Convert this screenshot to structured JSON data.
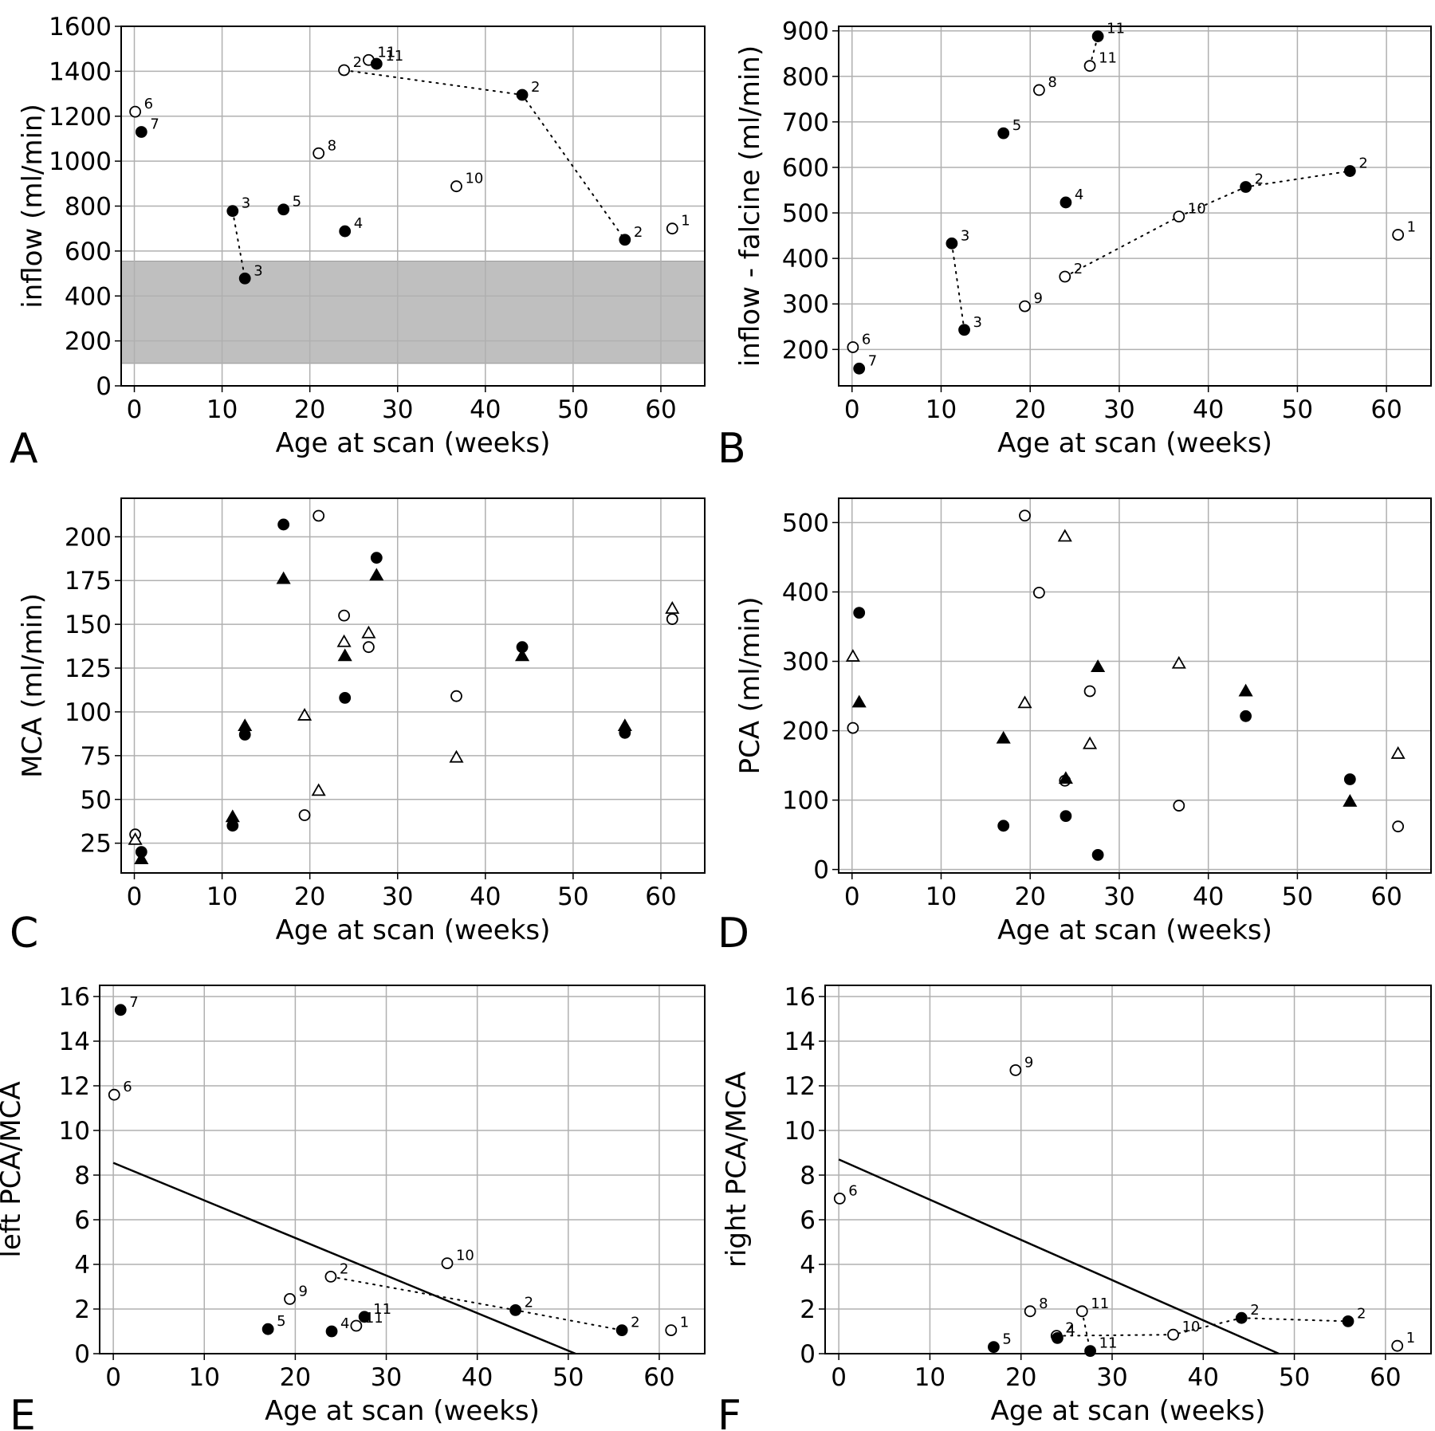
{
  "chart_data": [
    {
      "panel": "A",
      "type": "scatter",
      "xlabel": "Age at scan (weeks)",
      "ylabel": "inflow (ml/min)",
      "xlim": [
        -1.5,
        65
      ],
      "ylim": [
        0,
        1600
      ],
      "xticks": [
        0,
        10,
        20,
        30,
        40,
        50,
        60
      ],
      "yticks": [
        0,
        200,
        400,
        600,
        800,
        1000,
        1200,
        1400,
        1600
      ],
      "grid": true,
      "band": {
        "y0": 100,
        "y1": 555,
        "color": "#bfbfbf"
      },
      "points": [
        {
          "x": 0.1,
          "y": 1220,
          "filled": false,
          "label": "6"
        },
        {
          "x": 0.8,
          "y": 1130,
          "filled": true,
          "label": "7"
        },
        {
          "x": 11.2,
          "y": 778,
          "filled": true,
          "label": "3"
        },
        {
          "x": 12.6,
          "y": 478,
          "filled": true,
          "label": "3"
        },
        {
          "x": 17.0,
          "y": 785,
          "filled": true,
          "label": "5"
        },
        {
          "x": 21.0,
          "y": 1035,
          "filled": false,
          "label": "8"
        },
        {
          "x": 23.9,
          "y": 1405,
          "filled": false,
          "label": "2"
        },
        {
          "x": 24.0,
          "y": 688,
          "filled": true,
          "label": "4"
        },
        {
          "x": 26.7,
          "y": 1450,
          "filled": false,
          "label": "11"
        },
        {
          "x": 27.6,
          "y": 1433,
          "filled": true,
          "label": "11"
        },
        {
          "x": 36.7,
          "y": 888,
          "filled": false,
          "label": "10"
        },
        {
          "x": 44.2,
          "y": 1295,
          "filled": true,
          "label": "2"
        },
        {
          "x": 55.9,
          "y": 650,
          "filled": true,
          "label": "2"
        },
        {
          "x": 61.3,
          "y": 700,
          "filled": false,
          "label": "1"
        }
      ],
      "connectors": [
        [
          [
            11.2,
            778
          ],
          [
            12.6,
            478
          ]
        ],
        [
          [
            23.9,
            1405
          ],
          [
            44.2,
            1295
          ],
          [
            55.9,
            650
          ]
        ],
        [
          [
            26.7,
            1450
          ],
          [
            27.6,
            1433
          ]
        ]
      ]
    },
    {
      "panel": "B",
      "type": "scatter",
      "xlabel": "Age at scan (weeks)",
      "ylabel": "inflow - falcine (ml/min)",
      "xlim": [
        -1.5,
        65
      ],
      "ylim": [
        120,
        910
      ],
      "xticks": [
        0,
        10,
        20,
        30,
        40,
        50,
        60
      ],
      "yticks": [
        200,
        300,
        400,
        500,
        600,
        700,
        800,
        900
      ],
      "grid": true,
      "points": [
        {
          "x": 0.1,
          "y": 205,
          "filled": false,
          "label": "6"
        },
        {
          "x": 0.8,
          "y": 158,
          "filled": true,
          "label": "7"
        },
        {
          "x": 11.2,
          "y": 433,
          "filled": true,
          "label": "3"
        },
        {
          "x": 12.6,
          "y": 243,
          "filled": true,
          "label": "3"
        },
        {
          "x": 17.0,
          "y": 675,
          "filled": true,
          "label": "5"
        },
        {
          "x": 19.4,
          "y": 295,
          "filled": false,
          "label": "9"
        },
        {
          "x": 21.0,
          "y": 770,
          "filled": false,
          "label": "8"
        },
        {
          "x": 23.9,
          "y": 360,
          "filled": false,
          "label": "2"
        },
        {
          "x": 24.0,
          "y": 523,
          "filled": true,
          "label": "4"
        },
        {
          "x": 26.7,
          "y": 823,
          "filled": false,
          "label": "11"
        },
        {
          "x": 27.6,
          "y": 888,
          "filled": true,
          "label": "11"
        },
        {
          "x": 36.7,
          "y": 492,
          "filled": false,
          "label": "10"
        },
        {
          "x": 44.2,
          "y": 557,
          "filled": true,
          "label": "2"
        },
        {
          "x": 55.9,
          "y": 592,
          "filled": true,
          "label": "2"
        },
        {
          "x": 61.3,
          "y": 452,
          "filled": false,
          "label": "1"
        }
      ],
      "connectors": [
        [
          [
            11.2,
            433
          ],
          [
            12.6,
            243
          ]
        ],
        [
          [
            23.9,
            360
          ],
          [
            36.7,
            492
          ],
          [
            44.2,
            557
          ],
          [
            55.9,
            592
          ]
        ],
        [
          [
            26.7,
            823
          ],
          [
            27.6,
            888
          ]
        ]
      ]
    },
    {
      "panel": "C",
      "type": "scatter",
      "xlabel": "Age at scan (weeks)",
      "ylabel": "MCA (ml/min)",
      "xlim": [
        -1.5,
        65
      ],
      "ylim": [
        8,
        222
      ],
      "xticks": [
        0,
        10,
        20,
        30,
        40,
        50,
        60
      ],
      "yticks": [
        25,
        50,
        75,
        100,
        125,
        150,
        175,
        200
      ],
      "grid": true,
      "series": [
        {
          "marker": "circle",
          "filled": true,
          "points": [
            [
              0.8,
              20
            ],
            [
              11.2,
              35
            ],
            [
              12.6,
              87
            ],
            [
              17.0,
              207
            ],
            [
              24.0,
              108
            ],
            [
              27.6,
              188
            ],
            [
              44.2,
              137
            ],
            [
              55.9,
              88
            ]
          ]
        },
        {
          "marker": "circle",
          "filled": false,
          "points": [
            [
              0.1,
              30
            ],
            [
              19.4,
              41
            ],
            [
              21.0,
              212
            ],
            [
              23.9,
              155
            ],
            [
              26.7,
              137
            ],
            [
              36.7,
              109
            ],
            [
              61.3,
              153
            ]
          ]
        },
        {
          "marker": "triangle",
          "filled": true,
          "points": [
            [
              0.8,
              16
            ],
            [
              11.2,
              40
            ],
            [
              12.6,
              92
            ],
            [
              17.0,
              176
            ],
            [
              24.0,
              132
            ],
            [
              27.6,
              178
            ],
            [
              44.2,
              132
            ],
            [
              55.9,
              92
            ]
          ]
        },
        {
          "marker": "triangle",
          "filled": false,
          "points": [
            [
              0.1,
              27
            ],
            [
              19.4,
              98
            ],
            [
              21.0,
              55
            ],
            [
              23.9,
              140
            ],
            [
              26.7,
              145
            ],
            [
              36.7,
              74
            ],
            [
              61.3,
              159
            ]
          ]
        }
      ]
    },
    {
      "panel": "D",
      "type": "scatter",
      "xlabel": "Age at scan (weeks)",
      "ylabel": "PCA (ml/min)",
      "xlim": [
        -1.5,
        65
      ],
      "ylim": [
        -5,
        535
      ],
      "xticks": [
        0,
        10,
        20,
        30,
        40,
        50,
        60
      ],
      "yticks": [
        0,
        100,
        200,
        300,
        400,
        500
      ],
      "grid": true,
      "series": [
        {
          "marker": "circle",
          "filled": true,
          "points": [
            [
              0.8,
              370
            ],
            [
              17.0,
              63
            ],
            [
              24.0,
              77
            ],
            [
              27.6,
              21
            ],
            [
              44.2,
              221
            ],
            [
              55.9,
              130
            ]
          ]
        },
        {
          "marker": "circle",
          "filled": false,
          "points": [
            [
              0.1,
              204
            ],
            [
              19.4,
              510
            ],
            [
              21.0,
              399
            ],
            [
              23.9,
              128
            ],
            [
              26.7,
              257
            ],
            [
              36.7,
              92
            ],
            [
              61.3,
              62
            ]
          ]
        },
        {
          "marker": "triangle",
          "filled": true,
          "points": [
            [
              0.8,
              241
            ],
            [
              17.0,
              189
            ],
            [
              24.0,
              131
            ],
            [
              27.6,
              292
            ],
            [
              44.2,
              257
            ],
            [
              55.9,
              98
            ]
          ]
        },
        {
          "marker": "triangle",
          "filled": false,
          "points": [
            [
              0.1,
              307
            ],
            [
              19.4,
              240
            ],
            [
              23.9,
              480
            ],
            [
              26.7,
              181
            ],
            [
              36.7,
              297
            ],
            [
              61.3,
              167
            ]
          ]
        }
      ]
    },
    {
      "panel": "E",
      "type": "scatter",
      "xlabel": "Age at scan (weeks)",
      "ylabel": "left PCA/MCA",
      "xlim": [
        -1.5,
        65
      ],
      "ylim": [
        0,
        16.5
      ],
      "xticks": [
        0,
        10,
        20,
        30,
        40,
        50,
        60
      ],
      "yticks": [
        0,
        2,
        4,
        6,
        8,
        10,
        12,
        14,
        16
      ],
      "grid": true,
      "fit_line": [
        [
          0,
          8.55
        ],
        [
          50.8,
          0
        ]
      ],
      "points": [
        {
          "x": 0.1,
          "y": 11.6,
          "filled": false,
          "label": "6"
        },
        {
          "x": 0.8,
          "y": 15.4,
          "filled": true,
          "label": "7"
        },
        {
          "x": 17.0,
          "y": 1.1,
          "filled": true,
          "label": "5"
        },
        {
          "x": 19.4,
          "y": 2.45,
          "filled": false,
          "label": "9"
        },
        {
          "x": 23.9,
          "y": 3.45,
          "filled": false,
          "label": "2"
        },
        {
          "x": 24.0,
          "y": 1.0,
          "filled": true,
          "label": "4"
        },
        {
          "x": 26.7,
          "y": 1.25,
          "filled": false,
          "label": "11"
        },
        {
          "x": 27.6,
          "y": 1.65,
          "filled": true,
          "label": "11"
        },
        {
          "x": 36.7,
          "y": 4.05,
          "filled": false,
          "label": "10"
        },
        {
          "x": 44.2,
          "y": 1.95,
          "filled": true,
          "label": "2"
        },
        {
          "x": 55.9,
          "y": 1.05,
          "filled": true,
          "label": "2"
        },
        {
          "x": 61.3,
          "y": 1.05,
          "filled": false,
          "label": "1"
        }
      ],
      "connectors": [
        [
          [
            23.9,
            3.45
          ],
          [
            44.2,
            1.95
          ],
          [
            55.9,
            1.05
          ]
        ],
        [
          [
            26.7,
            1.25
          ],
          [
            27.6,
            1.65
          ]
        ]
      ]
    },
    {
      "panel": "F",
      "type": "scatter",
      "xlabel": "Age at scan (weeks)",
      "ylabel": "right PCA/MCA",
      "xlim": [
        -1.5,
        65
      ],
      "ylim": [
        0,
        16.5
      ],
      "xticks": [
        0,
        10,
        20,
        30,
        40,
        50,
        60
      ],
      "yticks": [
        0,
        2,
        4,
        6,
        8,
        10,
        12,
        14,
        16
      ],
      "grid": true,
      "fit_line": [
        [
          0,
          8.7
        ],
        [
          48.3,
          0
        ]
      ],
      "points": [
        {
          "x": 0.1,
          "y": 6.95,
          "filled": false,
          "label": "6"
        },
        {
          "x": 17.0,
          "y": 0.3,
          "filled": true,
          "label": "5"
        },
        {
          "x": 19.4,
          "y": 12.7,
          "filled": false,
          "label": "9"
        },
        {
          "x": 21.0,
          "y": 1.9,
          "filled": false,
          "label": "8"
        },
        {
          "x": 23.9,
          "y": 0.8,
          "filled": false,
          "label": "2"
        },
        {
          "x": 24.0,
          "y": 0.7,
          "filled": true,
          "label": "4"
        },
        {
          "x": 26.7,
          "y": 1.9,
          "filled": false,
          "label": "11"
        },
        {
          "x": 27.6,
          "y": 0.12,
          "filled": true,
          "label": "11"
        },
        {
          "x": 36.7,
          "y": 0.85,
          "filled": false,
          "label": "10"
        },
        {
          "x": 44.2,
          "y": 1.6,
          "filled": true,
          "label": "2"
        },
        {
          "x": 55.9,
          "y": 1.45,
          "filled": true,
          "label": "2"
        },
        {
          "x": 61.3,
          "y": 0.35,
          "filled": false,
          "label": "1"
        }
      ],
      "connectors": [
        [
          [
            23.9,
            0.8
          ],
          [
            36.7,
            0.85
          ],
          [
            44.2,
            1.6
          ],
          [
            55.9,
            1.45
          ]
        ],
        [
          [
            26.7,
            1.9
          ],
          [
            27.6,
            0.12
          ]
        ]
      ]
    }
  ]
}
